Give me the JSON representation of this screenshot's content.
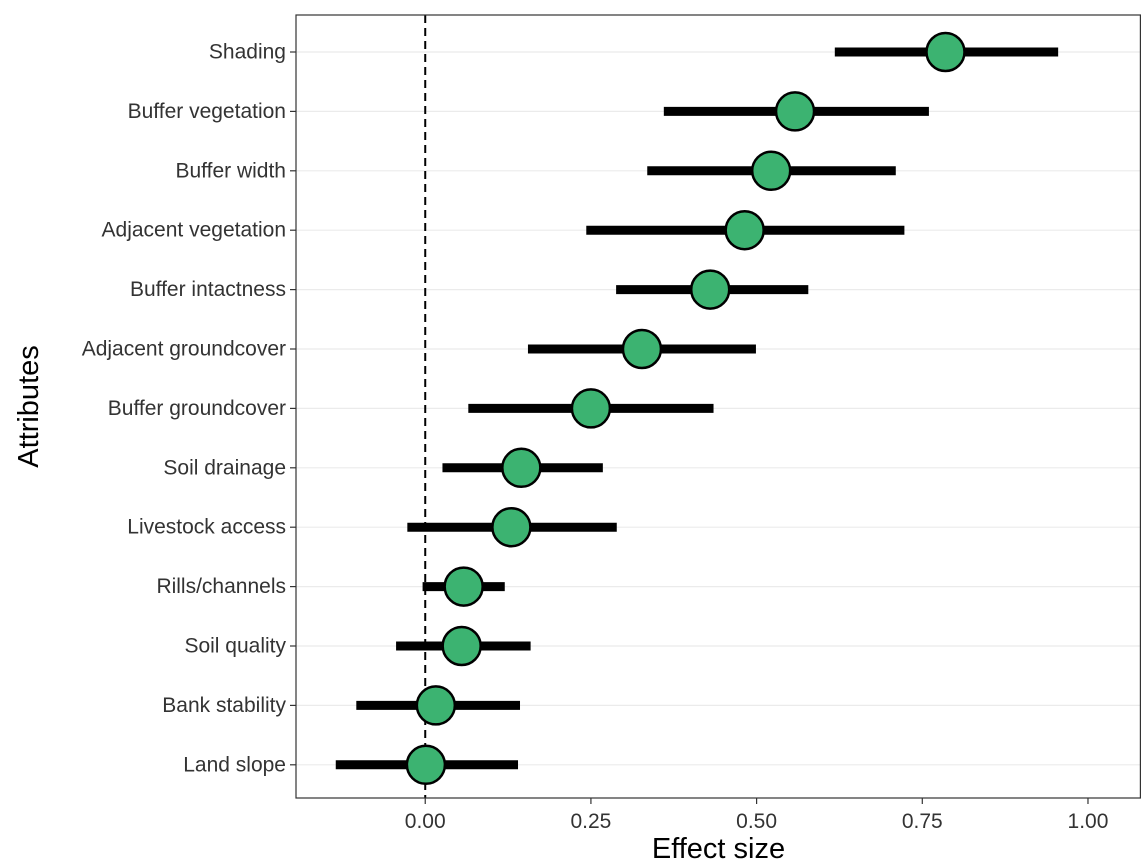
{
  "chart_data": {
    "type": "scatter",
    "subtype": "forest-plot",
    "title": "",
    "xlabel": "Effect size",
    "ylabel": "Attributes",
    "xlim": [
      -0.195,
      1.08
    ],
    "xticks": [
      0.0,
      0.25,
      0.5,
      0.75,
      1.0
    ],
    "xtick_labels": [
      "0.00",
      "0.25",
      "0.50",
      "0.75",
      "1.00"
    ],
    "reference_line": {
      "x": 0,
      "style": "dashed"
    },
    "grid": {
      "horizontal": true,
      "vertical": false
    },
    "legend": "none",
    "point_color": "#3cb371",
    "interval_color": "#000000",
    "categories": [
      "Shading",
      "Buffer vegetation",
      "Buffer width",
      "Adjacent vegetation",
      "Buffer intactness",
      "Adjacent groundcover",
      "Buffer groundcover",
      "Soil drainage",
      "Livestock access",
      "Rills/channels",
      "Soil quality",
      "Bank stability",
      "Land slope"
    ],
    "estimate": [
      0.785,
      0.558,
      0.522,
      0.482,
      0.43,
      0.327,
      0.25,
      0.145,
      0.13,
      0.058,
      0.055,
      0.016,
      0.001
    ],
    "lower": [
      0.618,
      0.36,
      0.335,
      0.243,
      0.288,
      0.155,
      0.065,
      0.026,
      -0.027,
      -0.004,
      -0.044,
      -0.104,
      -0.135
    ],
    "upper": [
      0.955,
      0.76,
      0.71,
      0.723,
      0.578,
      0.499,
      0.435,
      0.268,
      0.289,
      0.12,
      0.159,
      0.143,
      0.14
    ]
  }
}
